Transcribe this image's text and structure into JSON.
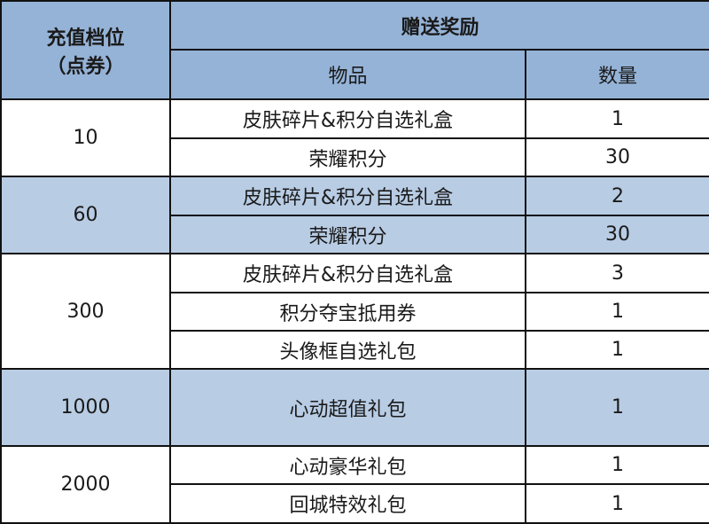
{
  "header": {
    "tier_label_line1": "充值档位",
    "tier_label_line2": "（点券）",
    "reward_label": "赠送奖励",
    "item_label": "物品",
    "quantity_label": "数量"
  },
  "colors": {
    "header": "#95b3d7",
    "band": "#b8cce4",
    "white": "#ffffff"
  },
  "tiers": [
    {
      "amount": "10",
      "shaded": false,
      "rewards": [
        {
          "item": "皮肤碎片&积分自选礼盒",
          "qty": "1"
        },
        {
          "item": "荣耀积分",
          "qty": "30"
        }
      ]
    },
    {
      "amount": "60",
      "shaded": true,
      "rewards": [
        {
          "item": "皮肤碎片&积分自选礼盒",
          "qty": "2"
        },
        {
          "item": "荣耀积分",
          "qty": "30"
        }
      ]
    },
    {
      "amount": "300",
      "shaded": false,
      "rewards": [
        {
          "item": "皮肤碎片&积分自选礼盒",
          "qty": "3"
        },
        {
          "item": "积分夺宝抵用券",
          "qty": "1"
        },
        {
          "item": "头像框自选礼包",
          "qty": "1"
        }
      ]
    },
    {
      "amount": "1000",
      "shaded": true,
      "rewards": [
        {
          "item": "心动超值礼包",
          "qty": "1"
        }
      ]
    },
    {
      "amount": "2000",
      "shaded": false,
      "rewards": [
        {
          "item": "心动豪华礼包",
          "qty": "1"
        },
        {
          "item": "回城特效礼包",
          "qty": "1"
        }
      ]
    }
  ]
}
